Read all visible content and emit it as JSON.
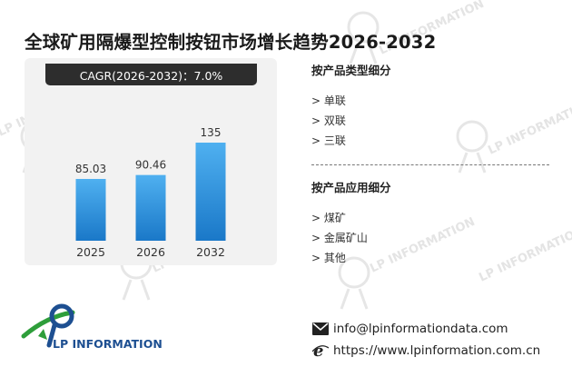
{
  "title": "全球矿用隔爆型控制按钮市场增长趋势2026-2032",
  "cagr_label": "CAGR(2026-2032)：7.0%",
  "chart_data": {
    "type": "bar",
    "categories": [
      "2025",
      "2026",
      "2032"
    ],
    "values": [
      85.03,
      90.46,
      135
    ],
    "value_labels": [
      "85.03",
      "90.46",
      "135"
    ],
    "ylim": [
      0,
      150
    ],
    "grid": false,
    "bar_color_top": "#4fb0f0",
    "bar_color_bottom": "#1a78c8"
  },
  "segments": [
    {
      "heading": "按产品类型细分",
      "items": [
        "> 单联",
        "> 双联",
        "> 三联"
      ]
    },
    {
      "heading": "按产品应用细分",
      "items": [
        "> 煤矿",
        "> 金属矿山",
        "> 其他"
      ]
    }
  ],
  "logo": {
    "text": "LP INFORMATION",
    "colors": {
      "green": "#2e9e3a",
      "blue": "#1d4f91"
    }
  },
  "contact": {
    "email_icon": "envelope-icon",
    "email": "info@lpinformationdata.com",
    "web_icon": "browser-e-icon",
    "website": "https://www.lpinformation.com.cn"
  },
  "watermark": "LP INFORMATION"
}
